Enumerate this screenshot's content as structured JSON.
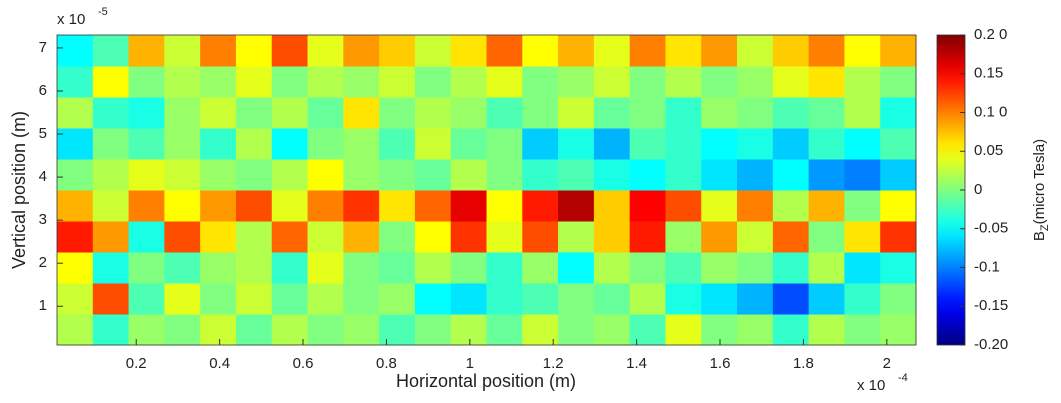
{
  "chart_data": {
    "type": "heatmap",
    "x_label": "Horizontal position (m)",
    "y_label": "Vertical position (m)",
    "x_multiplier": "x 10",
    "x_exponent": "-4",
    "y_multiplier": "x 10",
    "y_exponent": "-5",
    "xlim": [
      0.01,
      2.07
    ],
    "xticks": [
      0.2,
      0.4,
      0.6,
      0.8,
      1,
      1.2,
      1.4,
      1.6,
      1.8,
      2
    ],
    "ylim": [
      0.1,
      7.3
    ],
    "yticks": [
      1,
      2,
      3,
      4,
      5,
      6,
      7
    ],
    "colormap": "jet",
    "clim": [
      -0.2,
      0.2
    ],
    "cticks": [
      {
        "value": 0.2,
        "label": "0.2 0"
      },
      0.15,
      {
        "value": 0.1,
        "label": "0.1 0"
      },
      0.05,
      0,
      -0.05,
      -0.1,
      -0.15,
      {
        "value": -0.2,
        "label": "-0.20"
      }
    ],
    "colorbar_label": {
      "symbol": "B",
      "subscript": "Z",
      "unit": "(micro Tesla)"
    },
    "z": [
      [
        0.02,
        -0.03,
        0.01,
        0.0,
        0.03,
        -0.01,
        0.02,
        0.0,
        0.01,
        -0.02,
        0.0,
        0.02,
        -0.01,
        0.03,
        0.0,
        0.01,
        -0.02,
        0.04,
        0.0,
        0.01,
        -0.03,
        0.02,
        0.0,
        0.01
      ],
      [
        0.03,
        0.12,
        -0.02,
        0.04,
        0.0,
        0.03,
        -0.01,
        0.02,
        0.0,
        0.01,
        -0.05,
        -0.06,
        -0.03,
        -0.02,
        0.0,
        -0.01,
        0.02,
        -0.04,
        -0.06,
        -0.08,
        -0.12,
        -0.07,
        -0.03,
        0.0
      ],
      [
        0.05,
        -0.04,
        0.0,
        -0.02,
        0.01,
        0.02,
        -0.03,
        0.04,
        0.0,
        -0.01,
        0.02,
        0.0,
        -0.03,
        0.01,
        -0.05,
        0.02,
        0.0,
        -0.02,
        0.01,
        0.0,
        -0.03,
        0.02,
        -0.06,
        -0.04
      ],
      [
        0.14,
        0.09,
        -0.04,
        0.12,
        0.06,
        0.02,
        0.11,
        0.03,
        0.08,
        0.0,
        0.05,
        0.13,
        0.04,
        0.12,
        0.02,
        0.07,
        0.14,
        0.01,
        0.09,
        0.03,
        0.11,
        0.0,
        0.06,
        0.13
      ],
      [
        0.08,
        0.03,
        0.1,
        0.05,
        0.09,
        0.12,
        0.04,
        0.1,
        0.13,
        0.06,
        0.11,
        0.16,
        0.05,
        0.14,
        0.18,
        0.07,
        0.15,
        0.12,
        0.04,
        0.1,
        0.02,
        0.08,
        0.0,
        0.05
      ],
      [
        0.0,
        0.02,
        0.04,
        0.03,
        0.01,
        0.0,
        0.02,
        0.05,
        0.01,
        0.0,
        -0.01,
        0.02,
        0.0,
        -0.03,
        -0.02,
        -0.04,
        -0.05,
        -0.03,
        -0.06,
        -0.08,
        -0.05,
        -0.09,
        -0.1,
        -0.07
      ],
      [
        -0.06,
        0.0,
        -0.02,
        0.01,
        -0.03,
        0.02,
        -0.05,
        0.0,
        0.01,
        -0.02,
        0.03,
        -0.01,
        0.0,
        -0.07,
        -0.04,
        -0.08,
        -0.02,
        -0.03,
        -0.05,
        -0.04,
        -0.07,
        -0.03,
        -0.05,
        -0.02
      ],
      [
        0.02,
        -0.03,
        -0.04,
        0.01,
        0.03,
        0.0,
        0.02,
        -0.01,
        0.06,
        0.0,
        0.02,
        0.01,
        -0.02,
        0.0,
        0.03,
        -0.01,
        0.0,
        -0.03,
        0.01,
        0.0,
        -0.02,
        -0.01,
        0.02,
        -0.04
      ],
      [
        -0.03,
        0.05,
        0.0,
        0.02,
        0.01,
        0.04,
        0.0,
        0.02,
        0.01,
        0.03,
        0.0,
        0.02,
        0.04,
        0.0,
        0.01,
        0.03,
        0.0,
        0.02,
        0.0,
        0.01,
        0.04,
        0.06,
        0.02,
        0.0
      ],
      [
        -0.05,
        -0.02,
        0.08,
        0.03,
        0.1,
        0.05,
        0.12,
        0.04,
        0.09,
        0.07,
        0.03,
        0.06,
        0.11,
        0.05,
        0.08,
        0.04,
        0.1,
        0.06,
        0.09,
        0.03,
        0.07,
        0.1,
        0.05,
        0.08
      ]
    ]
  }
}
